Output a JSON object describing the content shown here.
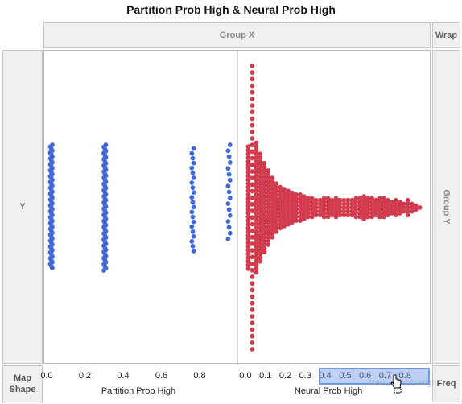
{
  "title": "Partition Prob High & Neural Prob High",
  "zones": {
    "group_x": "Group X",
    "wrap": "Wrap",
    "y": "Y",
    "group_y": "Group Y",
    "map_shape_line1": "Map",
    "map_shape_line2": "Shape",
    "freq": "Freq"
  },
  "drag_label": "Neural Prob High",
  "colors": {
    "partition": "#4169d9",
    "neural": "#d23a4e",
    "axis_line": "#b0b0b0"
  },
  "chart_data": [
    {
      "type": "scatter",
      "subtype": "beeswarm",
      "title": "Partition Prob High & Neural Prob High",
      "xlabel": "Partition Prob High",
      "ylabel": "Y",
      "xlim": [
        0,
        0.96
      ],
      "ticks": [
        "0.0",
        "0.2",
        "0.4",
        "0.6",
        "0.8"
      ],
      "tick_values": [
        0.0,
        0.2,
        0.4,
        0.6,
        0.8
      ],
      "series": [
        {
          "name": "Partition Prob High",
          "columns": [
            {
              "x": 0.02,
              "count": 64,
              "ymin": -0.5,
              "ymax": 0.52
            },
            {
              "x": 0.3,
              "count": 62,
              "ymin": -0.52,
              "ymax": 0.52
            },
            {
              "x": 0.76,
              "count": 22,
              "ymin": -0.36,
              "ymax": 0.49
            },
            {
              "x": 0.95,
              "count": 17,
              "ymin": -0.26,
              "ymax": 0.52
            }
          ]
        }
      ]
    },
    {
      "type": "scatter",
      "subtype": "beeswarm",
      "xlabel": "Neural Prob High",
      "xlim": [
        -0.02,
        0.9
      ],
      "ticks": [
        "0.0",
        "0.1",
        "0.2",
        "0.3",
        "0.4",
        "0.5",
        "0.6",
        "0.7",
        "0.8"
      ],
      "tick_values": [
        0.0,
        0.1,
        0.2,
        0.3,
        0.4,
        0.5,
        0.6,
        0.7,
        0.8
      ],
      "series": [
        {
          "name": "Neural Prob High",
          "columns": [
            {
              "x": 0.01,
              "count": 34
            },
            {
              "x": 0.03,
              "count": 44
            },
            {
              "x": 0.05,
              "count": 36
            },
            {
              "x": 0.07,
              "count": 30
            },
            {
              "x": 0.09,
              "count": 25
            },
            {
              "x": 0.11,
              "count": 21
            },
            {
              "x": 0.13,
              "count": 17
            },
            {
              "x": 0.15,
              "count": 14
            },
            {
              "x": 0.17,
              "count": 12
            },
            {
              "x": 0.19,
              "count": 11
            },
            {
              "x": 0.21,
              "count": 10
            },
            {
              "x": 0.23,
              "count": 9
            },
            {
              "x": 0.25,
              "count": 8
            },
            {
              "x": 0.27,
              "count": 8
            },
            {
              "x": 0.29,
              "count": 7
            },
            {
              "x": 0.31,
              "count": 6
            },
            {
              "x": 0.33,
              "count": 6
            },
            {
              "x": 0.35,
              "count": 5
            },
            {
              "x": 0.37,
              "count": 5
            },
            {
              "x": 0.39,
              "count": 6
            },
            {
              "x": 0.41,
              "count": 6
            },
            {
              "x": 0.43,
              "count": 5
            },
            {
              "x": 0.45,
              "count": 6
            },
            {
              "x": 0.47,
              "count": 5
            },
            {
              "x": 0.49,
              "count": 5
            },
            {
              "x": 0.51,
              "count": 5
            },
            {
              "x": 0.53,
              "count": 5
            },
            {
              "x": 0.55,
              "count": 6
            },
            {
              "x": 0.57,
              "count": 6
            },
            {
              "x": 0.59,
              "count": 7
            },
            {
              "x": 0.61,
              "count": 6
            },
            {
              "x": 0.63,
              "count": 6
            },
            {
              "x": 0.65,
              "count": 5
            },
            {
              "x": 0.67,
              "count": 6
            },
            {
              "x": 0.69,
              "count": 6
            },
            {
              "x": 0.71,
              "count": 5
            },
            {
              "x": 0.73,
              "count": 4
            },
            {
              "x": 0.75,
              "count": 5
            },
            {
              "x": 0.77,
              "count": 4
            },
            {
              "x": 0.79,
              "count": 3
            },
            {
              "x": 0.81,
              "count": 5
            },
            {
              "x": 0.83,
              "count": 3
            },
            {
              "x": 0.85,
              "count": 2
            },
            {
              "x": 0.87,
              "count": 1
            }
          ]
        }
      ]
    }
  ]
}
